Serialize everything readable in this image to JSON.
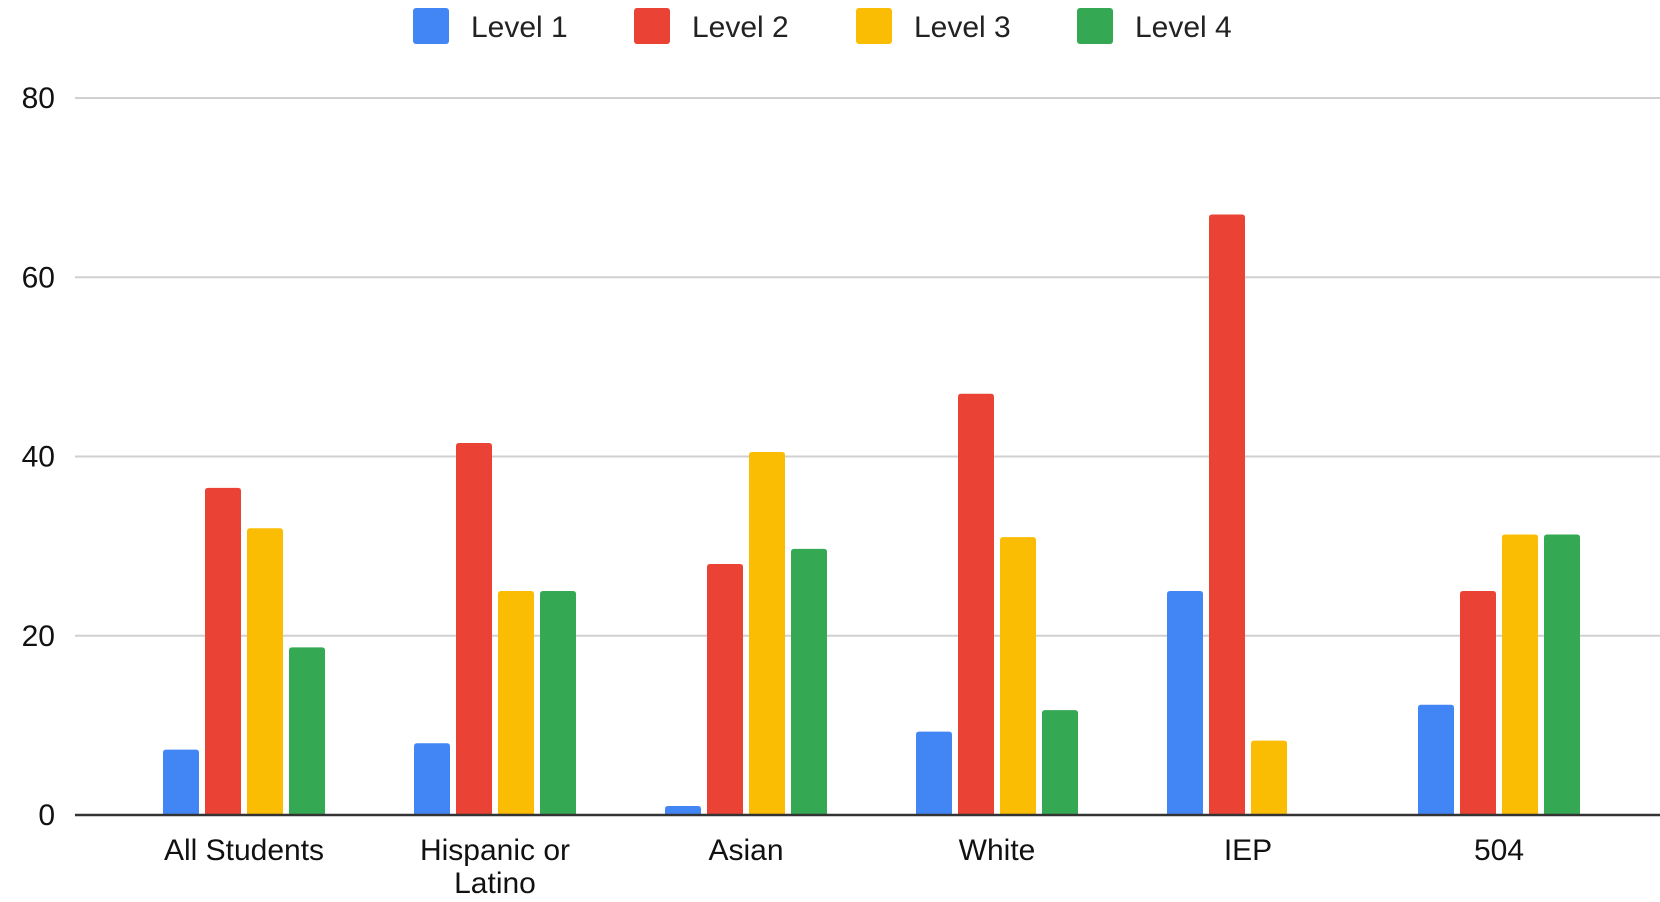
{
  "chart_data": {
    "type": "bar",
    "title": "",
    "xlabel": "",
    "ylabel": "",
    "categories": [
      [
        "All Students"
      ],
      [
        "Hispanic or",
        "Latino"
      ],
      [
        "Asian"
      ],
      [
        "White"
      ],
      [
        "IEP"
      ],
      [
        "504"
      ]
    ],
    "series": [
      {
        "name": "Level 1",
        "color": "#4285f4",
        "values": [
          7.3,
          8.0,
          1.0,
          9.3,
          25.0,
          12.3
        ]
      },
      {
        "name": "Level 2",
        "color": "#ea4335",
        "values": [
          36.5,
          41.5,
          28.0,
          47.0,
          67.0,
          25.0
        ]
      },
      {
        "name": "Level 3",
        "color": "#fbbc04",
        "values": [
          32.0,
          25.0,
          40.5,
          31.0,
          8.3,
          31.3
        ]
      },
      {
        "name": "Level 4",
        "color": "#34a853",
        "values": [
          18.7,
          25.0,
          29.7,
          11.7,
          null,
          31.3
        ]
      }
    ],
    "yticks": [
      "0",
      "20",
      "40",
      "60",
      "80"
    ],
    "ylim": [
      0,
      80
    ],
    "grid": true,
    "legend_position": "top-center"
  }
}
